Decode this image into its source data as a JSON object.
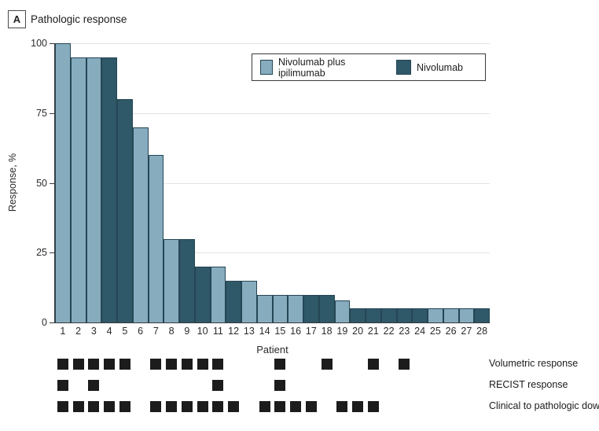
{
  "panel": {
    "label": "A",
    "title": "Pathologic response"
  },
  "chart_data": {
    "type": "bar",
    "title": "Pathologic response",
    "xlabel": "Patient",
    "ylabel": "Response, %",
    "ylim": [
      0,
      100
    ],
    "yticks": [
      0,
      25,
      50,
      75,
      100
    ],
    "categories": [
      1,
      2,
      3,
      4,
      5,
      6,
      7,
      8,
      9,
      10,
      11,
      12,
      13,
      14,
      15,
      16,
      17,
      18,
      19,
      20,
      21,
      22,
      23,
      24,
      25,
      26,
      27,
      28
    ],
    "values": [
      100,
      95,
      95,
      95,
      80,
      70,
      60,
      30,
      30,
      20,
      20,
      15,
      15,
      10,
      10,
      10,
      10,
      10,
      8,
      5,
      5,
      5,
      5,
      5,
      5,
      5,
      5,
      5
    ],
    "groups": [
      "combo",
      "combo",
      "combo",
      "nivo",
      "nivo",
      "combo",
      "combo",
      "combo",
      "nivo",
      "nivo",
      "combo",
      "nivo",
      "combo",
      "combo",
      "combo",
      "combo",
      "nivo",
      "nivo",
      "combo",
      "nivo",
      "nivo",
      "nivo",
      "nivo",
      "nivo",
      "combo",
      "combo",
      "combo",
      "nivo"
    ],
    "grid": "horizontal",
    "legend_position": "top-right"
  },
  "legend": {
    "items": [
      {
        "key": "combo",
        "label": "Nivolumab plus ipilimumab",
        "color": "#86acbe"
      },
      {
        "key": "nivo",
        "label": "Nivolumab",
        "color": "#2f5868"
      }
    ]
  },
  "marker_rows": [
    {
      "label": "Volumetric response",
      "patients": [
        1,
        2,
        3,
        4,
        5,
        7,
        8,
        9,
        10,
        11,
        15,
        18,
        21,
        23
      ]
    },
    {
      "label": "RECIST response",
      "patients": [
        1,
        3,
        11,
        15
      ]
    },
    {
      "label": "Clinical to pathologic dow",
      "patients": [
        1,
        2,
        3,
        4,
        5,
        7,
        8,
        9,
        10,
        11,
        12,
        14,
        15,
        16,
        17,
        19,
        20,
        21
      ]
    }
  ],
  "colors": {
    "combo_fill": "#86acbe",
    "nivo_fill": "#2f5868",
    "bar_border": "#264654",
    "grid": "#e3e3e3",
    "axis": "#3a3a3a",
    "marker": "#1c1c1c"
  }
}
